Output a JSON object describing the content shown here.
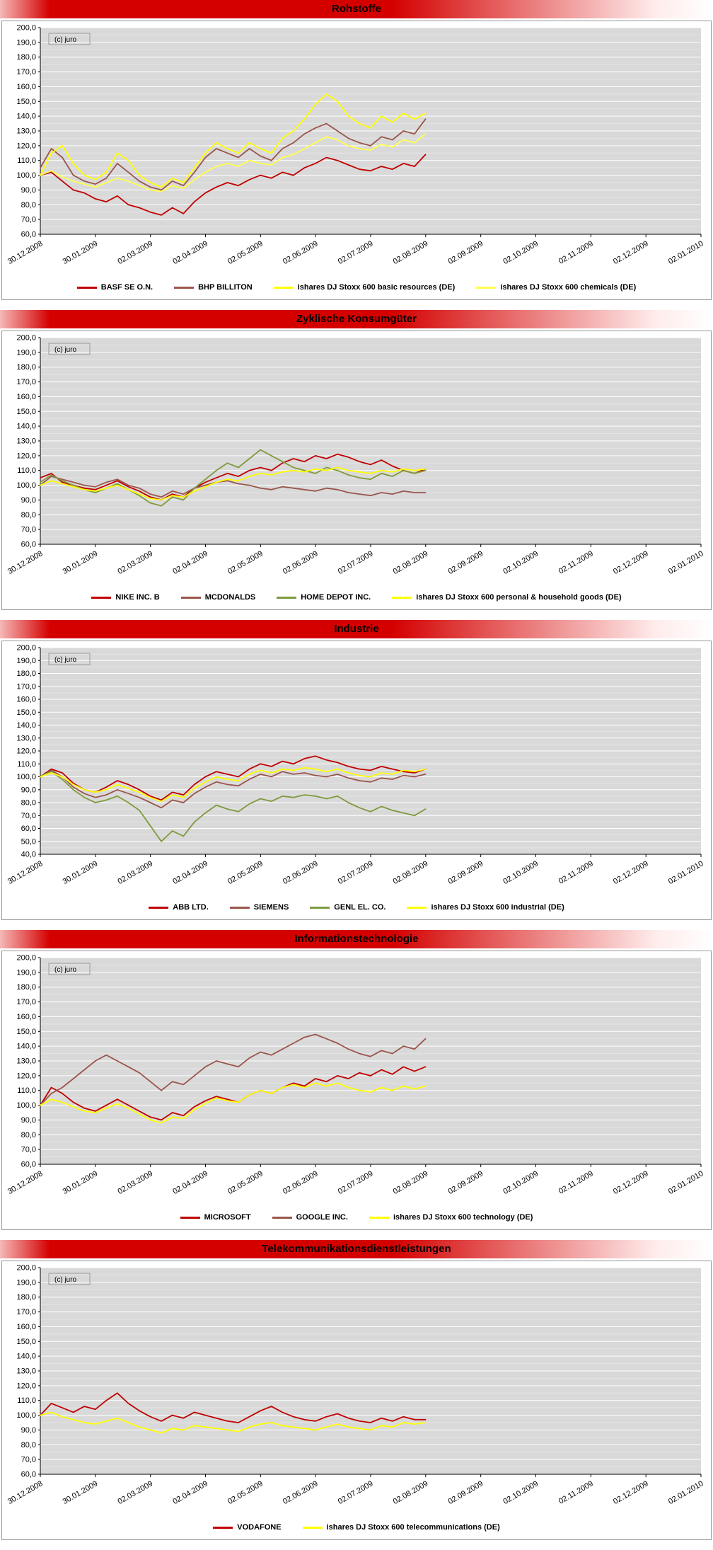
{
  "watermark": "(c) juro",
  "chart_data": [
    {
      "type": "line",
      "title": "Rohstoffe",
      "annotation": "(c) juro",
      "y_min": 60,
      "y_max": 200,
      "y_step": 10,
      "grid": true,
      "legend_position": "bottom",
      "data_end_fraction": 0.583,
      "x_tick_labels": [
        "30.12.2008",
        "30.01.2009",
        "02.03.2009",
        "02.04.2009",
        "02.05.2009",
        "02.06.2009",
        "02.07.2009",
        "02.08.2009",
        "02.09.2009",
        "02.10.2009",
        "02.11.2009",
        "02.12.2009",
        "02.01.2010"
      ],
      "series": [
        {
          "name": "BASF SE O.N.",
          "color": "#C00000",
          "values": [
            100,
            102,
            96,
            90,
            88,
            84,
            82,
            86,
            80,
            78,
            75,
            73,
            78,
            74,
            82,
            88,
            92,
            95,
            93,
            97,
            100,
            98,
            102,
            100,
            105,
            108,
            112,
            110,
            107,
            104,
            103,
            106,
            104,
            108,
            106,
            114
          ]
        },
        {
          "name": "BHP BILLITON",
          "color": "#9A564C",
          "values": [
            105,
            118,
            112,
            100,
            96,
            94,
            98,
            108,
            102,
            96,
            92,
            90,
            96,
            93,
            102,
            112,
            118,
            115,
            112,
            118,
            113,
            110,
            118,
            122,
            128,
            132,
            135,
            130,
            125,
            122,
            120,
            126,
            124,
            130,
            128,
            138
          ]
        },
        {
          "name": "ishares DJ Stoxx 600 basic resources (DE)",
          "color": "#FFFF00",
          "values": [
            100,
            115,
            120,
            108,
            100,
            97,
            102,
            115,
            110,
            100,
            95,
            92,
            98,
            95,
            105,
            115,
            122,
            118,
            115,
            122,
            118,
            115,
            125,
            130,
            138,
            148,
            155,
            150,
            140,
            135,
            132,
            140,
            136,
            142,
            138,
            142
          ]
        },
        {
          "name": "ishares DJ Stoxx 600 chemicals (DE)",
          "color": "#FFFF4D",
          "values": [
            100,
            103,
            99,
            96,
            94,
            92,
            95,
            98,
            96,
            93,
            90,
            89,
            93,
            91,
            97,
            102,
            106,
            108,
            106,
            110,
            108,
            107,
            112,
            114,
            118,
            122,
            126,
            124,
            120,
            118,
            117,
            121,
            119,
            124,
            122,
            128
          ]
        }
      ]
    },
    {
      "type": "line",
      "title": "Zyklische Konsumgüter",
      "annotation": "(c) juro",
      "y_min": 60,
      "y_max": 200,
      "y_step": 10,
      "grid": true,
      "legend_position": "bottom",
      "data_end_fraction": 0.583,
      "x_tick_labels": [
        "30.12.2008",
        "30.01.2009",
        "02.03.2009",
        "02.04.2009",
        "02.05.2009",
        "02.06.2009",
        "02.07.2009",
        "02.08.2009",
        "02.09.2009",
        "02.10.2009",
        "02.11.2009",
        "02.12.2009",
        "02.01.2010"
      ],
      "series": [
        {
          "name": "NIKE INC. B",
          "color": "#C00000",
          "values": [
            105,
            108,
            102,
            100,
            98,
            97,
            100,
            103,
            99,
            96,
            92,
            90,
            94,
            92,
            98,
            102,
            105,
            108,
            106,
            110,
            112,
            110,
            115,
            118,
            116,
            120,
            118,
            121,
            119,
            116,
            114,
            117,
            113,
            110,
            108,
            111
          ]
        },
        {
          "name": "MCDONALDS",
          "color": "#9A564C",
          "values": [
            100,
            106,
            104,
            102,
            100,
            99,
            102,
            104,
            100,
            98,
            94,
            92,
            96,
            94,
            98,
            100,
            102,
            103,
            101,
            100,
            98,
            97,
            99,
            98,
            97,
            96,
            98,
            97,
            95,
            94,
            93,
            95,
            94,
            96,
            95,
            95
          ]
        },
        {
          "name": "HOME DEPOT INC.",
          "color": "#7F9A3D",
          "values": [
            102,
            107,
            103,
            100,
            97,
            95,
            98,
            101,
            97,
            93,
            88,
            86,
            92,
            90,
            98,
            104,
            110,
            115,
            112,
            118,
            124,
            120,
            116,
            112,
            110,
            108,
            112,
            110,
            107,
            105,
            104,
            108,
            106,
            110,
            108,
            110
          ]
        },
        {
          "name": "ishares DJ Stoxx 600 personal & household goods (DE)",
          "color": "#FFFF00",
          "values": [
            100,
            103,
            101,
            99,
            97,
            96,
            98,
            100,
            97,
            94,
            91,
            90,
            93,
            92,
            96,
            99,
            102,
            104,
            103,
            106,
            108,
            107,
            109,
            110,
            109,
            111,
            110,
            112,
            110,
            109,
            108,
            110,
            109,
            111,
            110,
            111
          ]
        }
      ]
    },
    {
      "type": "line",
      "title": "Industrie",
      "annotation": "(c) juro",
      "y_min": 40,
      "y_max": 200,
      "y_step": 10,
      "grid": true,
      "legend_position": "bottom",
      "data_end_fraction": 0.583,
      "x_tick_labels": [
        "30.12.2008",
        "30.01.2009",
        "02.03.2009",
        "02.04.2009",
        "02.05.2009",
        "02.06.2009",
        "02.07.2009",
        "02.08.2009",
        "02.09.2009",
        "02.10.2009",
        "02.11.2009",
        "02.12.2009",
        "02.01.2010"
      ],
      "series": [
        {
          "name": "ABB LTD.",
          "color": "#C00000",
          "values": [
            100,
            106,
            103,
            95,
            90,
            88,
            92,
            97,
            94,
            90,
            85,
            82,
            88,
            86,
            94,
            100,
            104,
            102,
            100,
            106,
            110,
            108,
            112,
            110,
            114,
            116,
            113,
            111,
            108,
            106,
            105,
            108,
            106,
            104,
            103,
            106
          ]
        },
        {
          "name": "SIEMENS",
          "color": "#9A564C",
          "values": [
            100,
            105,
            100,
            92,
            87,
            84,
            86,
            90,
            87,
            84,
            80,
            76,
            82,
            80,
            87,
            92,
            96,
            94,
            93,
            98,
            102,
            100,
            104,
            102,
            103,
            101,
            100,
            102,
            99,
            97,
            96,
            99,
            98,
            101,
            100,
            102
          ]
        },
        {
          "name": "GENL EL. CO.",
          "color": "#7F9A3D",
          "values": [
            100,
            104,
            98,
            90,
            84,
            80,
            82,
            85,
            80,
            74,
            62,
            50,
            58,
            54,
            65,
            72,
            78,
            75,
            73,
            79,
            83,
            81,
            85,
            84,
            86,
            85,
            83,
            85,
            80,
            76,
            73,
            77,
            74,
            72,
            70,
            75
          ]
        },
        {
          "name": "ishares DJ Stoxx 600 industrial (DE)",
          "color": "#FFFF00",
          "values": [
            100,
            103,
            100,
            94,
            90,
            88,
            90,
            94,
            91,
            88,
            84,
            81,
            86,
            84,
            91,
            96,
            100,
            98,
            97,
            102,
            105,
            103,
            106,
            105,
            107,
            106,
            104,
            106,
            103,
            101,
            100,
            103,
            102,
            105,
            104,
            106
          ]
        }
      ]
    },
    {
      "type": "line",
      "title": "Informationstechnologie",
      "annotation": "(c) juro",
      "y_min": 60,
      "y_max": 200,
      "y_step": 10,
      "grid": true,
      "legend_position": "bottom",
      "data_end_fraction": 0.583,
      "x_tick_labels": [
        "30.12.2008",
        "30.01.2009",
        "02.03.2009",
        "02.04.2009",
        "02.05.2009",
        "02.06.2009",
        "02.07.2009",
        "02.08.2009",
        "02.09.2009",
        "02.10.2009",
        "02.11.2009",
        "02.12.2009",
        "02.01.2010"
      ],
      "series": [
        {
          "name": "MICROSOFT",
          "color": "#C00000",
          "values": [
            100,
            112,
            108,
            102,
            98,
            96,
            100,
            104,
            100,
            96,
            92,
            90,
            95,
            93,
            99,
            103,
            106,
            104,
            102,
            107,
            110,
            108,
            112,
            115,
            113,
            118,
            116,
            120,
            118,
            122,
            120,
            124,
            121,
            126,
            123,
            126
          ]
        },
        {
          "name": "GOOGLE INC.",
          "color": "#9A564C",
          "values": [
            100,
            108,
            112,
            118,
            124,
            130,
            134,
            130,
            126,
            122,
            116,
            110,
            116,
            114,
            120,
            126,
            130,
            128,
            126,
            132,
            136,
            134,
            138,
            142,
            146,
            148,
            145,
            142,
            138,
            135,
            133,
            137,
            135,
            140,
            138,
            145
          ]
        },
        {
          "name": "ishares DJ Stoxx 600 technology (DE)",
          "color": "#FFFF00",
          "values": [
            100,
            104,
            102,
            99,
            96,
            95,
            98,
            101,
            98,
            94,
            90,
            88,
            92,
            91,
            97,
            101,
            105,
            103,
            102,
            107,
            110,
            108,
            112,
            114,
            112,
            115,
            113,
            115,
            112,
            110,
            109,
            112,
            110,
            113,
            111,
            113
          ]
        }
      ]
    },
    {
      "type": "line",
      "title": "Telekommunikationsdienstleistungen",
      "annotation": "(c) juro",
      "y_min": 60,
      "y_max": 200,
      "y_step": 10,
      "grid": true,
      "legend_position": "bottom",
      "data_end_fraction": 0.583,
      "x_tick_labels": [
        "30.12.2008",
        "30.01.2009",
        "02.03.2009",
        "02.04.2009",
        "02.05.2009",
        "02.06.2009",
        "02.07.2009",
        "02.08.2009",
        "02.09.2009",
        "02.10.2009",
        "02.11.2009",
        "02.12.2009",
        "02.01.2010"
      ],
      "series": [
        {
          "name": "VODAFONE",
          "color": "#C00000",
          "values": [
            100,
            108,
            105,
            102,
            106,
            104,
            110,
            115,
            108,
            103,
            99,
            96,
            100,
            98,
            102,
            100,
            98,
            96,
            95,
            99,
            103,
            106,
            102,
            99,
            97,
            96,
            99,
            101,
            98,
            96,
            95,
            98,
            96,
            99,
            97,
            97
          ]
        },
        {
          "name": "ishares DJ Stoxx 600 telecommunications (DE)",
          "color": "#FFFF00",
          "values": [
            100,
            102,
            99,
            97,
            95,
            94,
            96,
            98,
            95,
            92,
            90,
            88,
            91,
            90,
            93,
            92,
            91,
            90,
            89,
            92,
            94,
            95,
            93,
            92,
            91,
            90,
            92,
            94,
            92,
            91,
            90,
            93,
            92,
            95,
            94,
            95
          ]
        }
      ]
    }
  ]
}
